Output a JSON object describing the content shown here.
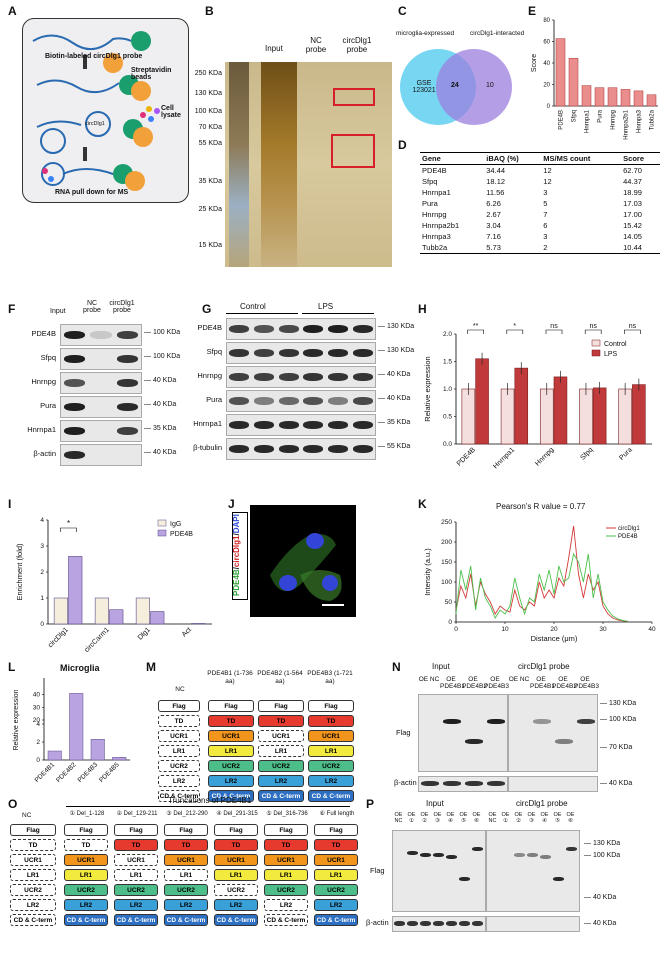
{
  "panels": {
    "A": {
      "letter": "A",
      "probe": "Biotin-labeled circDlg1 probe",
      "beads": "Streptavidin beads",
      "circ": "circDlg1",
      "lysate": "Cell lysate",
      "footer": "RNA pull down for MS"
    },
    "B": {
      "letter": "B",
      "lanes": [
        "Input",
        "NC probe",
        "circDlg1 probe"
      ],
      "markers": [
        "250 KDa",
        "130 KDa",
        "100 KDa",
        "70 KDa",
        "55 KDa",
        "35 KDa",
        "25 KDa",
        "15 KDa"
      ]
    },
    "C": {
      "letter": "C",
      "left_label": "microglia-expressed",
      "right_label": "circDlg1-interacted",
      "left_set": "GSE 123021",
      "overlap": "24",
      "right_only": "10"
    },
    "E": {
      "letter": "E",
      "ylabel": "Score"
    },
    "D": {
      "letter": "D",
      "headers": [
        "Gene",
        "iBAQ (%)",
        "MS/MS count",
        "Score"
      ],
      "rows": [
        [
          "PDE4B",
          "34.44",
          "12",
          "62.70"
        ],
        [
          "Sfpq",
          "18.12",
          "12",
          "44.37"
        ],
        [
          "Hnrnpa1",
          "11.56",
          "3",
          "18.99"
        ],
        [
          "Pura",
          "6.26",
          "5",
          "17.03"
        ],
        [
          "Hnrnpg",
          "2.67",
          "7",
          "17.00"
        ],
        [
          "Hnrnpa2b1",
          "3.04",
          "6",
          "15.42"
        ],
        [
          "Hnrnpa3",
          "7.16",
          "3",
          "14.05"
        ],
        [
          "Tubb2a",
          "5.73",
          "2",
          "10.44"
        ]
      ]
    },
    "F": {
      "letter": "F",
      "lanes": [
        "Input",
        "NC probe",
        "circDlg1 probe"
      ],
      "rows": [
        "PDE4B",
        "Sfpq",
        "Hnrnpg",
        "Pura",
        "Hnrnpa1",
        "β-actin"
      ],
      "sizes": [
        "100 KDa",
        "100 KDa",
        "40 KDa",
        "40 KDa",
        "35 KDa",
        "40 KDa"
      ]
    },
    "G": {
      "letter": "G",
      "groups": [
        "Control",
        "LPS"
      ],
      "rows": [
        "PDE4B",
        "Sfpq",
        "Hnrnpg",
        "Pura",
        "Hnrnpa1",
        "β-tubulin"
      ],
      "sizes": [
        "130 KDa",
        "130 KDa",
        "40 KDa",
        "40 KDa",
        "35 KDa",
        "55 KDa"
      ]
    },
    "H": {
      "letter": "H",
      "ylabel": "Relative expression",
      "sig": [
        "**",
        "*",
        "ns",
        "ns",
        "ns"
      ]
    },
    "I": {
      "letter": "I",
      "ylabel": "Enrichment (fold)",
      "sig": "*"
    },
    "J": {
      "letter": "J",
      "label_parts": [
        "PDE4B",
        "/",
        "circDlg1",
        "/",
        "DAPI"
      ]
    },
    "K": {
      "letter": "K",
      "title": "Pearson's R value = 0.77"
    },
    "L": {
      "letter": "L",
      "title": "Microglia",
      "ylabel": "Relative expression"
    },
    "M": {
      "letter": "M",
      "cols": [
        "NC",
        "PDE4B1 (1-736 aa)",
        "PDE4B2 (1-564 aa)",
        "PDE4B3 (1-721 aa)"
      ],
      "domains": [
        "Flag",
        "TD",
        "UCR1",
        "LR1",
        "UCR2",
        "LR2",
        "CD & C-term"
      ]
    },
    "N": {
      "letter": "N",
      "input": "Input",
      "probe": "circDlg1 probe",
      "lanes": [
        "OE NC",
        "OE PDE4B1",
        "OE PDE4B2",
        "OE PDE4B3"
      ],
      "flag": "Flag",
      "actin": "β-actin",
      "sizes": [
        "130 KDa",
        "100 KDa",
        "70 KDa",
        "40 KDa"
      ]
    },
    "O": {
      "letter": "O",
      "title": "Truncations of PDE4B1",
      "nc": "NC",
      "cols": [
        "① Del_1-128",
        "② Del_129-211",
        "③ Del_212-290",
        "④ Del_291-315",
        "⑤ Del_316-736",
        "⑥ Full length"
      ]
    },
    "P": {
      "letter": "P",
      "input": "Input",
      "probe": "circDlg1 probe",
      "lanes": [
        "OE NC",
        "OE ①",
        "OE ②",
        "OE ③",
        "OE ④",
        "OE ⑤",
        "OE ⑥"
      ],
      "flag": "Flag",
      "actin": "β-actin",
      "sizes": [
        "130 KDa",
        "100 KDa",
        "40 KDa",
        "40 KDa"
      ]
    }
  },
  "chart_data": [
    {
      "panel": "E",
      "type": "bar",
      "categories": [
        "PDE4B",
        "Sfpq",
        "Hnrnpa1",
        "Pura",
        "Hnrnpg",
        "Hnrnpa2b1",
        "Hnrnpa3",
        "Tubb2a"
      ],
      "values": [
        62.7,
        44.37,
        18.99,
        17.03,
        17.0,
        15.42,
        14.05,
        10.44
      ],
      "ylabel": "Score",
      "ylim": [
        0,
        80
      ],
      "yticks": [
        0,
        20,
        40,
        60,
        80
      ]
    },
    {
      "panel": "H",
      "type": "bar",
      "categories": [
        "PDE4B",
        "Hnrnpa1",
        "Hnrnpg",
        "Sfpq",
        "Pura"
      ],
      "series": [
        {
          "name": "Control",
          "values": [
            1.0,
            1.0,
            1.0,
            1.0,
            1.0
          ]
        },
        {
          "name": "LPS",
          "values": [
            1.55,
            1.38,
            1.22,
            1.02,
            1.08
          ]
        }
      ],
      "ylabel": "Relative expression",
      "ylim": [
        0,
        2.0
      ],
      "yticks": [
        0.0,
        0.5,
        1.0,
        1.5,
        2.0
      ]
    },
    {
      "panel": "I",
      "type": "bar",
      "categories": [
        "circDlg1",
        "circCarm1",
        "Dlg1",
        "Act"
      ],
      "series": [
        {
          "name": "IgG",
          "values": [
            1.0,
            1.0,
            1.0,
            0.0
          ]
        },
        {
          "name": "PDE4B",
          "values": [
            2.6,
            0.55,
            0.48,
            0.02
          ]
        }
      ],
      "ylabel": "Enrichment (fold)",
      "ylim": [
        0,
        4
      ],
      "yticks": [
        0,
        1,
        2,
        3,
        4
      ]
    },
    {
      "panel": "K",
      "type": "line",
      "xlabel": "Distance (μm)",
      "ylabel": "Intensity (a.u.)",
      "xlim": [
        0,
        40
      ],
      "ylim": [
        0,
        250
      ],
      "xticks": [
        0,
        10,
        20,
        30,
        40
      ],
      "yticks": [
        0,
        50,
        100,
        150,
        200,
        250
      ],
      "series": [
        {
          "name": "circDlg1",
          "x": [
            0,
            1,
            2,
            3,
            4,
            5,
            6,
            7,
            8,
            9,
            10,
            11,
            12,
            13,
            14,
            15,
            16,
            17,
            18,
            19,
            20,
            21,
            22,
            23,
            24,
            25,
            26,
            27,
            28,
            29,
            30,
            31,
            32,
            33,
            34,
            35
          ],
          "values": [
            30,
            90,
            60,
            120,
            40,
            100,
            70,
            50,
            20,
            40,
            30,
            25,
            80,
            40,
            30,
            50,
            40,
            100,
            60,
            80,
            60,
            110,
            90,
            160,
            240,
            120,
            60,
            120,
            80,
            100,
            40,
            20,
            10,
            5,
            3,
            2
          ]
        },
        {
          "name": "PDE4B",
          "x": [
            0,
            1,
            2,
            3,
            4,
            5,
            6,
            7,
            8,
            9,
            10,
            11,
            12,
            13,
            14,
            15,
            16,
            17,
            18,
            19,
            20,
            21,
            22,
            23,
            24,
            25,
            26,
            27,
            28,
            29,
            30,
            31,
            32,
            33,
            34,
            35
          ],
          "values": [
            20,
            130,
            80,
            140,
            30,
            110,
            60,
            40,
            10,
            30,
            20,
            40,
            110,
            60,
            20,
            60,
            50,
            120,
            80,
            130,
            70,
            140,
            100,
            110,
            170,
            150,
            100,
            170,
            60,
            120,
            50,
            30,
            15,
            8,
            4,
            2
          ]
        }
      ]
    },
    {
      "panel": "L",
      "type": "bar",
      "title": "Microglia",
      "categories": [
        "PDE4B1",
        "PDE4B2",
        "PDE4B3",
        "PDE4B5"
      ],
      "values": [
        1.0,
        41.0,
        2.3,
        0.3
      ],
      "ylabel": "Relative expression"
    }
  ],
  "colors": {
    "control": "#f4dede",
    "lps": "#c0393b",
    "igg": "#f5eedc",
    "pde4b_bar": "#b9a3e0",
    "e_bar": "#e98d8d",
    "td": "#e63a2e",
    "ucr1": "#f1951c",
    "lr1": "#f2ea3e",
    "ucr2": "#4dbd8a",
    "lr2": "#3aa0d8",
    "cd": "#2d6fc2"
  }
}
